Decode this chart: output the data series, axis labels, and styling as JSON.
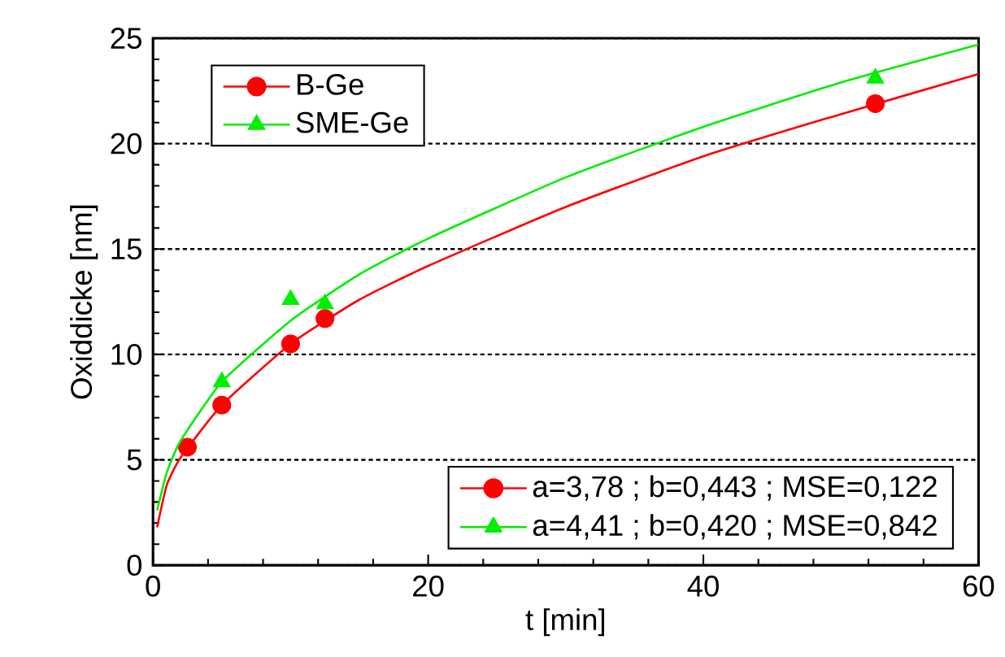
{
  "chart_data": {
    "type": "scatter",
    "xlabel": "t [min]",
    "ylabel": "Oxiddicke [nm]",
    "xlim": [
      0,
      60
    ],
    "ylim": [
      0,
      25
    ],
    "xticks": [
      0,
      20,
      40,
      60
    ],
    "yticks": [
      0,
      5,
      10,
      15,
      20,
      25
    ],
    "grid": "y",
    "legend": "bottom right",
    "series": [
      {
        "name": "B-Ge",
        "color": "#ff0000",
        "marker": "circle",
        "x": [
          2.5,
          5,
          10,
          12.5,
          52.5
        ],
        "values": [
          5.6,
          7.6,
          10.5,
          11.7,
          21.9
        ]
      },
      {
        "name": "SME-Ge",
        "color": "#00ee00",
        "marker": "triangle",
        "x": [
          5,
          10,
          12.5,
          52.5
        ],
        "values": [
          8.7,
          12.6,
          12.4,
          23.1
        ]
      },
      {
        "name": "a=3,78 ; b=0,443 ; MSE=0,122",
        "type": "line",
        "color": "#ff0000",
        "x": [
          0.3,
          1,
          2,
          5,
          10,
          15,
          20,
          30,
          40,
          50,
          60
        ],
        "values": [
          1.8,
          3.8,
          5.1,
          7.6,
          10.5,
          12.6,
          14.2,
          17.0,
          19.4,
          21.4,
          23.3
        ]
      },
      {
        "name": "a=4,41 ; b=0,420 ; MSE=0,842",
        "type": "line",
        "color": "#00ee00",
        "x": [
          0.3,
          1,
          2,
          5,
          10,
          15,
          20,
          30,
          40,
          50,
          60
        ],
        "values": [
          2.6,
          4.4,
          5.9,
          8.7,
          11.6,
          13.8,
          15.5,
          18.4,
          20.8,
          22.9,
          24.7
        ]
      }
    ]
  }
}
